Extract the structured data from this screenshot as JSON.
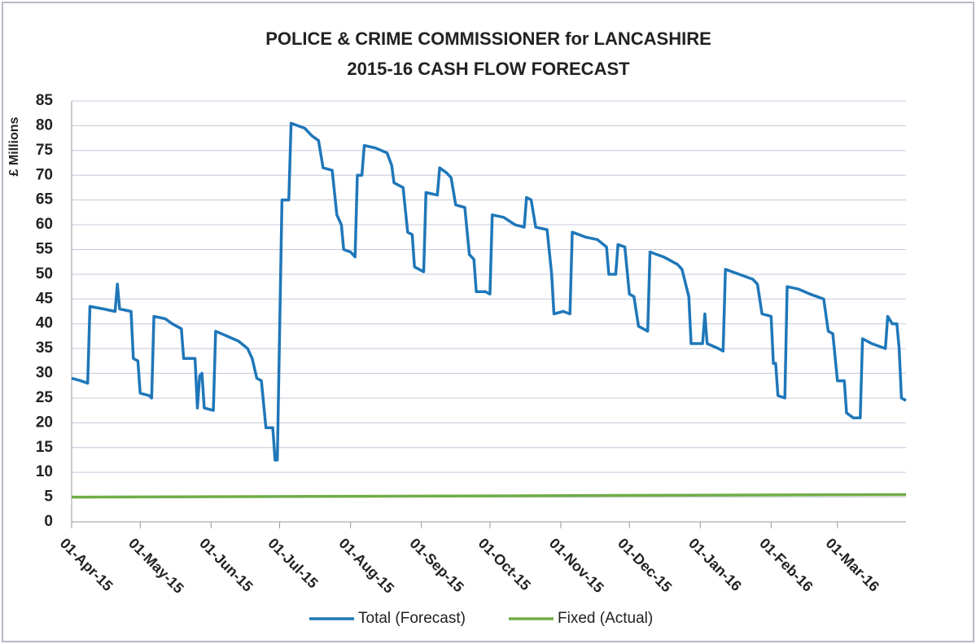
{
  "chart_data": {
    "type": "line",
    "title": [
      "POLICE & CRIME COMMISSIONER for LANCASHIRE",
      "2015-16 CASH FLOW FORECAST"
    ],
    "y_label": "£ Millions",
    "xlim": [
      "2015-04-01",
      "2016-03-31"
    ],
    "xticks": [
      {
        "value": "2015-04-01",
        "label": "01-Apr-15"
      },
      {
        "value": "2015-05-01",
        "label": "01-May-15"
      },
      {
        "value": "2015-06-01",
        "label": "01-Jun-15"
      },
      {
        "value": "2015-07-01",
        "label": "01-Jul-15"
      },
      {
        "value": "2015-08-01",
        "label": "01-Aug-15"
      },
      {
        "value": "2015-09-01",
        "label": "01-Sep-15"
      },
      {
        "value": "2015-10-01",
        "label": "01-Oct-15"
      },
      {
        "value": "2015-11-01",
        "label": "01-Nov-15"
      },
      {
        "value": "2015-12-01",
        "label": "01-Dec-15"
      },
      {
        "value": "2016-01-01",
        "label": "01-Jan-16"
      },
      {
        "value": "2016-02-01",
        "label": "01-Feb-16"
      },
      {
        "value": "2016-03-01",
        "label": "01-Mar-16"
      }
    ],
    "ylim": [
      0,
      85
    ],
    "yticks": [
      0,
      5,
      10,
      15,
      20,
      25,
      30,
      35,
      40,
      45,
      50,
      55,
      60,
      65,
      70,
      75,
      80,
      85
    ],
    "grid": true,
    "series": [
      {
        "name": "Total (Forecast)",
        "color": "#1f77b9",
        "x": [
          "2015-04-01",
          "2015-04-05",
          "2015-04-08",
          "2015-04-09",
          "2015-04-15",
          "2015-04-20",
          "2015-04-21",
          "2015-04-22",
          "2015-04-27",
          "2015-04-28",
          "2015-04-30",
          "2015-05-01",
          "2015-05-05",
          "2015-05-06",
          "2015-05-07",
          "2015-05-12",
          "2015-05-15",
          "2015-05-19",
          "2015-05-20",
          "2015-05-25",
          "2015-05-26",
          "2015-05-27",
          "2015-05-28",
          "2015-05-29",
          "2015-06-02",
          "2015-06-03",
          "2015-06-08",
          "2015-06-13",
          "2015-06-17",
          "2015-06-19",
          "2015-06-21",
          "2015-06-23",
          "2015-06-25",
          "2015-06-28",
          "2015-06-29",
          "2015-06-30",
          "2015-07-02",
          "2015-07-05",
          "2015-07-06",
          "2015-07-12",
          "2015-07-15",
          "2015-07-18",
          "2015-07-20",
          "2015-07-24",
          "2015-07-26",
          "2015-07-28",
          "2015-07-29",
          "2015-08-01",
          "2015-08-03",
          "2015-08-04",
          "2015-08-06",
          "2015-08-07",
          "2015-08-12",
          "2015-08-17",
          "2015-08-19",
          "2015-08-20",
          "2015-08-24",
          "2015-08-26",
          "2015-08-28",
          "2015-08-29",
          "2015-08-31",
          "2015-09-02",
          "2015-09-03",
          "2015-09-08",
          "2015-09-09",
          "2015-09-12",
          "2015-09-14",
          "2015-09-16",
          "2015-09-20",
          "2015-09-22",
          "2015-09-24",
          "2015-09-25",
          "2015-09-29",
          "2015-10-01",
          "2015-10-02",
          "2015-10-07",
          "2015-10-12",
          "2015-10-16",
          "2015-10-17",
          "2015-10-19",
          "2015-10-21",
          "2015-10-26",
          "2015-10-28",
          "2015-10-29",
          "2015-11-02",
          "2015-11-05",
          "2015-11-06",
          "2015-11-12",
          "2015-11-17",
          "2015-11-21",
          "2015-11-22",
          "2015-11-25",
          "2015-11-26",
          "2015-11-29",
          "2015-12-01",
          "2015-12-03",
          "2015-12-05",
          "2015-12-09",
          "2015-12-10",
          "2015-12-16",
          "2015-12-22",
          "2015-12-24",
          "2015-12-27",
          "2015-12-28",
          "2016-01-02",
          "2016-01-03",
          "2016-01-04",
          "2016-01-09",
          "2016-01-11",
          "2016-01-12",
          "2016-01-18",
          "2016-01-24",
          "2016-01-26",
          "2016-01-28",
          "2016-02-01",
          "2016-02-02",
          "2016-02-03",
          "2016-02-04",
          "2016-02-07",
          "2016-02-08",
          "2016-02-13",
          "2016-02-18",
          "2016-02-24",
          "2016-02-26",
          "2016-02-28",
          "2016-03-01",
          "2016-03-04",
          "2016-03-05",
          "2016-03-08",
          "2016-03-11",
          "2016-03-12",
          "2016-03-16",
          "2016-03-22",
          "2016-03-23",
          "2016-03-25",
          "2016-03-27",
          "2016-03-28",
          "2016-03-29",
          "2016-03-31"
        ],
        "values": [
          29,
          28.5,
          28,
          43.5,
          43,
          42.5,
          48,
          43,
          42.5,
          33,
          32.5,
          26,
          25.5,
          25,
          41.5,
          41,
          40,
          39,
          33,
          33,
          23,
          29.5,
          30,
          23,
          22.5,
          38.5,
          37.5,
          36.5,
          35,
          33,
          29,
          28.5,
          19,
          19,
          12.5,
          12.5,
          65,
          65,
          80.5,
          79.5,
          78,
          77,
          71.5,
          71,
          62,
          60,
          55,
          54.5,
          53.5,
          70,
          70,
          76,
          75.5,
          74.5,
          72,
          68.5,
          67.5,
          58.5,
          58,
          51.5,
          51,
          50.5,
          66.5,
          66,
          71.5,
          70.5,
          69.5,
          64,
          63.5,
          54,
          53,
          46.5,
          46.5,
          46,
          62,
          61.5,
          60,
          59.5,
          65.5,
          65,
          59.5,
          59,
          50,
          42,
          42.5,
          42,
          58.5,
          57.5,
          57,
          55.5,
          50,
          50,
          56,
          55.5,
          46,
          45.5,
          39.5,
          38.5,
          54.5,
          53.5,
          52,
          51,
          45.5,
          36,
          36,
          42,
          36,
          35,
          34.5,
          51,
          50,
          49,
          48,
          42,
          41.5,
          32,
          32,
          25.5,
          25,
          47.5,
          47,
          46,
          45,
          38.5,
          38,
          28.5,
          28.5,
          22,
          21,
          21,
          37,
          36,
          35,
          41.5,
          40,
          40,
          35,
          25,
          24.5
        ]
      },
      {
        "name": "Fixed (Actual)",
        "color": "#70ad47",
        "x": [
          "2015-04-01",
          "2016-03-31"
        ],
        "values": [
          5,
          5.5
        ]
      }
    ]
  }
}
